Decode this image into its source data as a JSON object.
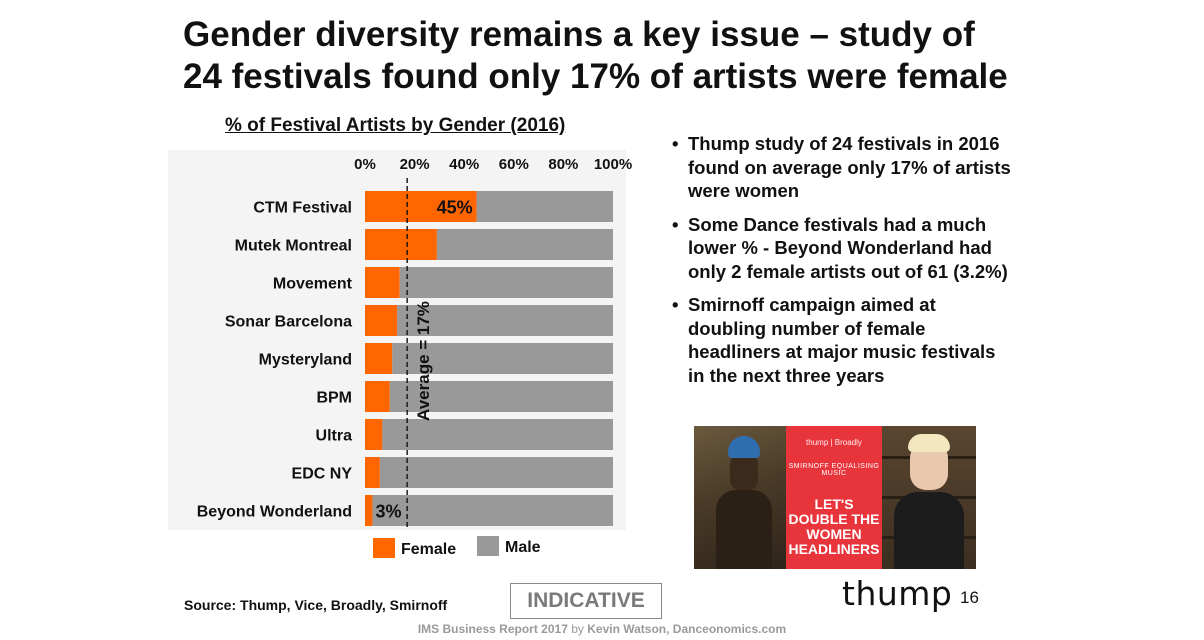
{
  "title_line1": "Gender diversity remains a key issue – study of",
  "title_line2": "24 festivals found only 17% of artists were female",
  "chart_data": {
    "type": "bar",
    "orientation": "horizontal",
    "stacked": true,
    "title": "% of Festival Artists by Gender (2016)",
    "categories": [
      "CTM Festival",
      "Mutek Montreal",
      "Movement",
      "Sonar Barcelona",
      "Mysteryland",
      "BPM",
      "Ultra",
      "EDC NY",
      "Beyond Wonderland"
    ],
    "series": [
      {
        "name": "Female",
        "color": "#FF6600",
        "values": [
          45,
          29,
          14,
          13,
          11,
          10,
          7,
          6,
          3
        ]
      },
      {
        "name": "Male",
        "color": "#999999",
        "values": [
          55,
          71,
          86,
          87,
          89,
          90,
          93,
          94,
          97
        ]
      }
    ],
    "axis_ticks": [
      "0%",
      "20%",
      "40%",
      "60%",
      "80%",
      "100%"
    ],
    "xlim": [
      0,
      100
    ],
    "data_labels": [
      {
        "category": "CTM Festival",
        "text": "45%"
      },
      {
        "category": "Beyond Wonderland",
        "text": "3%"
      }
    ],
    "reference_line": {
      "value": 17,
      "label": "Average = 17%",
      "style": "dashed"
    },
    "legend": [
      "Female",
      "Male"
    ],
    "legend_position": "bottom"
  },
  "bullets": [
    "Thump study of 24 festivals in 2016 found on average only 17% of artists were women",
    "Some Dance festivals had a much lower % - Beyond Wonderland had only 2 female artists out of 61 (3.2%)",
    "Smirnoff campaign aimed at doubling number of female headliners at major music festivals in the next three years"
  ],
  "photo": {
    "brand": "thump | Broadly",
    "small_text": "SMIRNOFF EQUALISING MUSIC",
    "headline": "LET'S DOUBLE THE WOMEN HEADLINERS"
  },
  "source": "Source: Thump, Vice, Broadly, Smirnoff",
  "indicative": "INDICATIVE",
  "logo": "thump",
  "page_number": "16",
  "footer": {
    "report": "IMS Business Report 2017",
    "by": " by ",
    "author": "Kevin Watson, Danceonomics.com"
  }
}
